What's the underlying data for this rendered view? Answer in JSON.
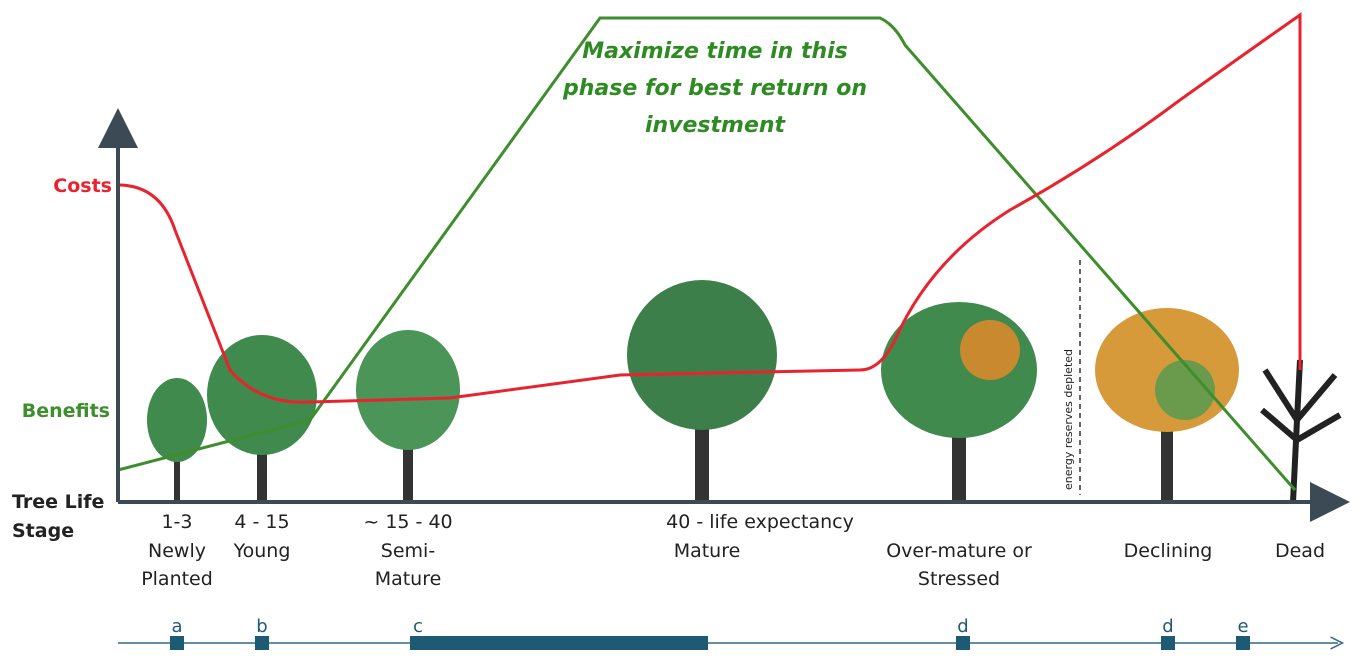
{
  "annotation": {
    "lines": [
      "Maximize time in this",
      "phase for best return on",
      "investment"
    ]
  },
  "axis": {
    "costs": "Costs",
    "benefits": "Benefits",
    "x_label": [
      "Tree Life",
      "Stage"
    ]
  },
  "stages": [
    {
      "age": "1-3",
      "name": [
        "Newly",
        "Planted"
      ]
    },
    {
      "age": "4 - 15",
      "name": [
        "Young"
      ]
    },
    {
      "age": "~ 15 - 40",
      "name": [
        "Semi-",
        "Mature"
      ]
    },
    {
      "age": "40 - life expectancy",
      "name": [
        "Mature"
      ]
    },
    {
      "name": [
        "Over-mature or",
        "Stressed"
      ]
    },
    {
      "name": [
        "Declining"
      ]
    },
    {
      "name": [
        "Dead"
      ]
    }
  ],
  "note": "energy reserves depleted",
  "timeline": {
    "markers": [
      "a",
      "b",
      "c",
      "d",
      "d",
      "e"
    ]
  }
}
